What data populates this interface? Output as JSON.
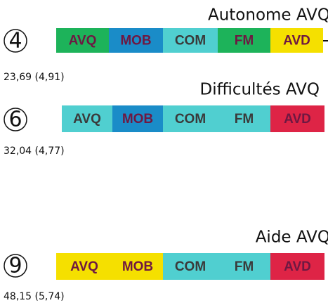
{
  "rows": [
    {
      "title": "Autonome AVQ",
      "number": "4",
      "stats": "23,69 (4,91)",
      "segments": [
        {
          "label": "AVQ",
          "color": "#1db35a"
        },
        {
          "label": "MOB",
          "color": "#1a8cc8"
        },
        {
          "label": "COM",
          "color": "#50cfd0"
        },
        {
          "label": "FM",
          "color": "#1db35a"
        },
        {
          "label": "AVD",
          "color": "#f5e000"
        }
      ]
    },
    {
      "title": "Difficultés AVQ",
      "number": "6",
      "stats": "32,04 (4,77)",
      "segments": [
        {
          "label": "AVQ",
          "color": "#50cfd0"
        },
        {
          "label": "MOB",
          "color": "#1a8cc8"
        },
        {
          "label": "COM",
          "color": "#50cfd0"
        },
        {
          "label": "FM",
          "color": "#50cfd0"
        },
        {
          "label": "AVD",
          "color": "#de2446"
        }
      ]
    },
    {
      "title": "Aide AVQ",
      "number": "9",
      "stats": "48,15 (5,74)",
      "segments": [
        {
          "label": "AVQ",
          "color": "#f5e000"
        },
        {
          "label": "MOB",
          "color": "#f5e000"
        },
        {
          "label": "COM",
          "color": "#50cfd0"
        },
        {
          "label": "FM",
          "color": "#50cfd0"
        },
        {
          "label": "AVD",
          "color": "#de2446"
        }
      ]
    }
  ]
}
